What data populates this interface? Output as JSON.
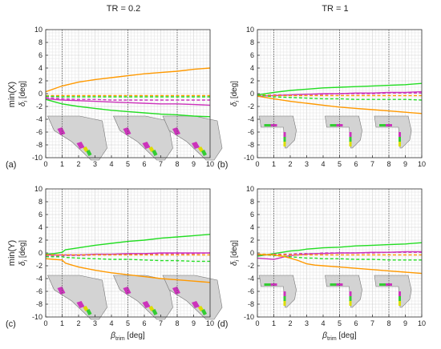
{
  "column_titles": [
    "TR = 0.2",
    "TR = 1"
  ],
  "row_labels": [
    "min(X)",
    "min(Y)"
  ],
  "y_label": {
    "main": "δ",
    "sub": "i",
    "unit": " [deg]"
  },
  "x_label": {
    "main": "β",
    "sub": "trim",
    "unit": " [deg]"
  },
  "colors": {
    "orange": "#ff9900",
    "green": "#22dd22",
    "magenta": "#cc33bb",
    "planform_fill": "#d3d3d3",
    "surface_green": "#33cc33",
    "surface_yellow": "#dddd00",
    "surface_magenta": "#cc33bb"
  },
  "chart_data": [
    {
      "id": "a",
      "type": "line",
      "panel_label": "(a)",
      "xlim": [
        0,
        10
      ],
      "ylim": [
        -10,
        10
      ],
      "xticks": [
        0,
        1,
        2,
        3,
        4,
        5,
        6,
        7,
        8,
        9,
        10
      ],
      "yticks": [
        10,
        8,
        6,
        4,
        2,
        0,
        -2,
        -4,
        -6,
        -8,
        -10
      ],
      "marker_lines_x": [
        1,
        5,
        8
      ],
      "grid": true,
      "x": [
        0,
        1,
        2,
        3,
        4,
        5,
        6,
        7,
        8,
        9,
        10
      ],
      "series": [
        {
          "color": "orange",
          "style": "solid",
          "values": [
            0.3,
            1.2,
            1.8,
            2.2,
            2.5,
            2.8,
            3.1,
            3.3,
            3.5,
            3.8,
            4.0
          ]
        },
        {
          "color": "orange",
          "style": "dashed",
          "values": [
            -0.3,
            -0.3,
            -0.3,
            -0.3,
            -0.3,
            -0.3,
            -0.3,
            -0.3,
            -0.3,
            -0.3,
            -0.3
          ]
        },
        {
          "color": "green",
          "style": "dashed",
          "values": [
            -0.4,
            -0.5,
            -0.5,
            -0.5,
            -0.5,
            -0.5,
            -0.5,
            -0.5,
            -0.5,
            -0.5,
            -0.5
          ]
        },
        {
          "color": "magenta",
          "style": "dashed",
          "values": [
            -0.6,
            -0.8,
            -0.9,
            -0.9,
            -1.0,
            -1.0,
            -1.0,
            -1.0,
            -1.0,
            -1.0,
            -1.0
          ]
        },
        {
          "color": "magenta",
          "style": "solid",
          "values": [
            -0.8,
            -1.0,
            -1.1,
            -1.2,
            -1.3,
            -1.4,
            -1.5,
            -1.6,
            -1.6,
            -1.7,
            -1.8
          ]
        },
        {
          "color": "green",
          "style": "solid",
          "values": [
            -0.9,
            -1.6,
            -2.0,
            -2.3,
            -2.6,
            -2.8,
            -3.0,
            -3.2,
            -3.3,
            -3.5,
            -3.6
          ]
        }
      ]
    },
    {
      "id": "b",
      "type": "line",
      "panel_label": "(b)",
      "xlim": [
        0,
        10
      ],
      "ylim": [
        -10,
        10
      ],
      "xticks": [
        0,
        1,
        2,
        3,
        4,
        5,
        6,
        7,
        8,
        9,
        10
      ],
      "yticks": [
        10,
        8,
        6,
        4,
        2,
        0,
        -2,
        -4,
        -6,
        -8,
        -10
      ],
      "marker_lines_x": [
        1,
        5,
        8
      ],
      "grid": true,
      "x": [
        0,
        1,
        2,
        3,
        4,
        5,
        6,
        7,
        8,
        9,
        10
      ],
      "series": [
        {
          "color": "green",
          "style": "solid",
          "values": [
            -0.2,
            0.2,
            0.5,
            0.7,
            0.9,
            1.0,
            1.1,
            1.2,
            1.3,
            1.4,
            1.6
          ]
        },
        {
          "color": "magenta",
          "style": "solid",
          "values": [
            -0.4,
            -0.3,
            -0.2,
            -0.1,
            0.0,
            0.0,
            0.1,
            0.1,
            0.2,
            0.2,
            0.3
          ]
        },
        {
          "color": "magenta",
          "style": "dashed",
          "values": [
            -0.3,
            -0.2,
            -0.2,
            -0.1,
            -0.1,
            0.0,
            0.0,
            0.0,
            0.1,
            0.1,
            0.1
          ]
        },
        {
          "color": "orange",
          "style": "dashed",
          "values": [
            -0.2,
            -0.3,
            -0.3,
            -0.3,
            -0.3,
            -0.3,
            -0.3,
            -0.3,
            -0.3,
            -0.3,
            -0.3
          ]
        },
        {
          "color": "green",
          "style": "dashed",
          "values": [
            -0.2,
            -0.5,
            -0.6,
            -0.7,
            -0.8,
            -0.8,
            -0.9,
            -0.9,
            -0.9,
            -0.9,
            -1.0
          ]
        },
        {
          "color": "orange",
          "style": "solid",
          "values": [
            -0.4,
            -0.8,
            -1.2,
            -1.5,
            -1.8,
            -2.1,
            -2.3,
            -2.5,
            -2.7,
            -2.9,
            -3.1
          ]
        }
      ]
    },
    {
      "id": "c",
      "type": "line",
      "panel_label": "(c)",
      "xlim": [
        0,
        10
      ],
      "ylim": [
        -10,
        10
      ],
      "xticks": [
        0,
        1,
        2,
        3,
        4,
        5,
        6,
        7,
        8,
        9,
        10
      ],
      "yticks": [
        10,
        8,
        6,
        4,
        2,
        0,
        -2,
        -4,
        -6,
        -8,
        -10
      ],
      "marker_lines_x": [
        1,
        5,
        8
      ],
      "grid": true,
      "x": [
        0,
        0.5,
        1,
        1.2,
        2,
        3,
        4,
        5,
        6,
        7,
        8,
        9,
        10
      ],
      "series": [
        {
          "color": "green",
          "style": "solid",
          "values": [
            -0.2,
            -0.1,
            0.1,
            0.5,
            0.8,
            1.2,
            1.5,
            1.8,
            2.0,
            2.3,
            2.5,
            2.7,
            2.9
          ]
        },
        {
          "color": "magenta",
          "style": "solid",
          "values": [
            -0.3,
            -0.3,
            -0.3,
            -0.3,
            -0.3,
            -0.2,
            -0.2,
            -0.1,
            -0.1,
            0.0,
            0.0,
            0.0,
            0.0
          ]
        },
        {
          "color": "magenta",
          "style": "dashed",
          "values": [
            -0.5,
            -0.5,
            -0.5,
            -0.4,
            -0.4,
            -0.3,
            -0.3,
            -0.2,
            -0.2,
            -0.1,
            -0.1,
            -0.1,
            0.0
          ]
        },
        {
          "color": "orange",
          "style": "dashed",
          "values": [
            -0.3,
            -0.3,
            -0.3,
            -0.3,
            -0.3,
            -0.3,
            -0.3,
            -0.3,
            -0.3,
            -0.3,
            -0.3,
            -0.3,
            -0.3
          ]
        },
        {
          "color": "green",
          "style": "dashed",
          "values": [
            -0.6,
            -0.6,
            -0.6,
            -0.7,
            -0.8,
            -0.9,
            -1.0,
            -1.0,
            -1.1,
            -1.2,
            -1.2,
            -1.3,
            -1.3
          ]
        },
        {
          "color": "orange",
          "style": "solid",
          "values": [
            -0.9,
            -1.0,
            -1.1,
            -1.6,
            -2.2,
            -2.7,
            -3.1,
            -3.4,
            -3.7,
            -4.0,
            -4.2,
            -4.4,
            -4.6
          ]
        }
      ]
    },
    {
      "id": "d",
      "type": "line",
      "panel_label": "(d)",
      "xlim": [
        0,
        10
      ],
      "ylim": [
        -10,
        10
      ],
      "xticks": [
        0,
        1,
        2,
        3,
        4,
        5,
        6,
        7,
        8,
        9,
        10
      ],
      "yticks": [
        10,
        8,
        6,
        4,
        2,
        0,
        -2,
        -4,
        -6,
        -8,
        -10
      ],
      "marker_lines_x": [
        1,
        5,
        8
      ],
      "grid": true,
      "x": [
        0,
        0.5,
        1,
        1.5,
        2,
        2.5,
        3,
        3.5,
        4,
        5,
        6,
        7,
        8,
        9,
        10
      ],
      "series": [
        {
          "color": "green",
          "style": "solid",
          "values": [
            -0.5,
            -0.3,
            -0.1,
            0.1,
            0.3,
            0.4,
            0.6,
            0.7,
            0.8,
            0.9,
            1.1,
            1.2,
            1.3,
            1.4,
            1.6
          ]
        },
        {
          "color": "magenta",
          "style": "solid",
          "values": [
            -0.8,
            -0.9,
            -1.0,
            -0.7,
            -0.4,
            -0.3,
            -0.2,
            -0.1,
            -0.1,
            0.0,
            0.0,
            0.1,
            0.1,
            0.2,
            0.2
          ]
        },
        {
          "color": "magenta",
          "style": "dashed",
          "values": [
            -0.3,
            -0.3,
            -0.2,
            -0.2,
            -0.2,
            -0.1,
            -0.1,
            -0.1,
            0.0,
            0.0,
            0.0,
            0.0,
            0.1,
            0.1,
            0.1
          ]
        },
        {
          "color": "orange",
          "style": "dashed",
          "values": [
            -0.2,
            -0.2,
            -0.3,
            -0.3,
            -0.3,
            -0.3,
            -0.3,
            -0.3,
            -0.3,
            -0.3,
            -0.3,
            -0.3,
            -0.3,
            -0.3,
            -0.3
          ]
        },
        {
          "color": "green",
          "style": "dashed",
          "values": [
            -0.2,
            -0.3,
            -0.4,
            -0.5,
            -0.6,
            -0.7,
            -0.8,
            -0.8,
            -0.9,
            -0.9,
            -1.0,
            -1.0,
            -1.1,
            -1.1,
            -1.1
          ]
        },
        {
          "color": "orange",
          "style": "solid",
          "values": [
            -0.2,
            -0.3,
            -0.3,
            -0.5,
            -0.8,
            -1.2,
            -1.7,
            -1.9,
            -2.0,
            -2.2,
            -2.4,
            -2.6,
            -2.8,
            -3.0,
            -3.2
          ]
        }
      ]
    }
  ]
}
